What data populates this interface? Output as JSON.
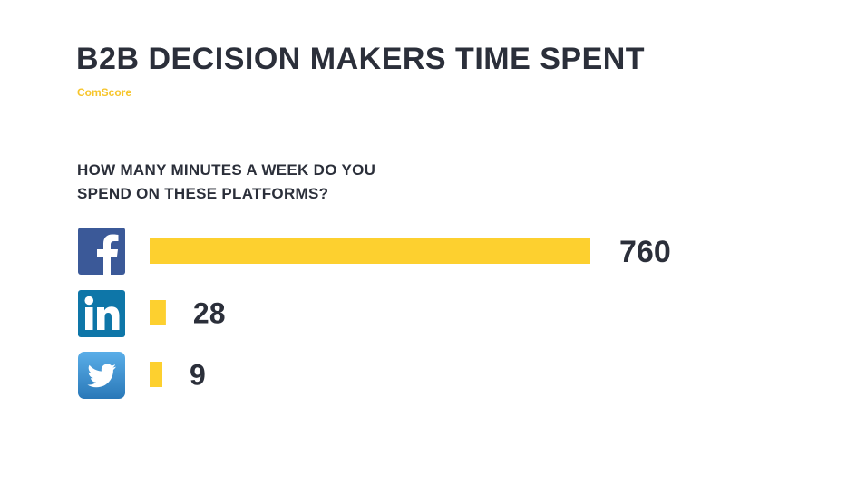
{
  "header": {
    "title": "B2B DECISION MAKERS TIME SPENT",
    "source": "ComScore"
  },
  "question": {
    "line1": "HOW MANY MINUTES A WEEK DO YOU",
    "line2": "SPEND ON THESE PLATFORMS?"
  },
  "colors": {
    "bar": "#fdd02f",
    "text": "#2b2f3a",
    "source": "#f7c52b",
    "facebook": "#3b5998",
    "linkedin": "#0e76a8",
    "twitter": "#2f86c6"
  },
  "chart_data": {
    "type": "bar",
    "orientation": "horizontal",
    "title": "B2B DECISION MAKERS TIME SPENT",
    "subtitle": "HOW MANY MINUTES A WEEK DO YOU SPEND ON THESE PLATFORMS?",
    "categories": [
      "Facebook",
      "LinkedIn",
      "Twitter"
    ],
    "category_icons": [
      "facebook-icon",
      "linkedin-icon",
      "twitter-icon"
    ],
    "values": [
      760,
      28,
      9
    ],
    "xlim": [
      0,
      760
    ],
    "grid": false,
    "legend": "none",
    "data_labels": true
  }
}
